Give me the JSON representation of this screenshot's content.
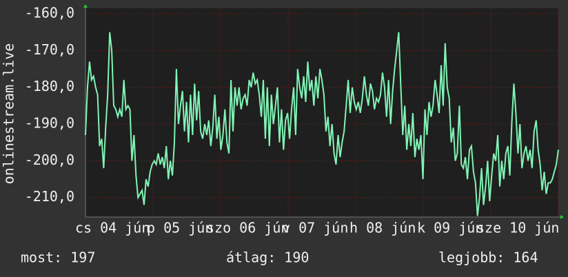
{
  "chart_data": {
    "type": "line",
    "y_label": "onlinestream.live",
    "color": "#80f5b5",
    "ylim": [
      -215.3,
      -158.5
    ],
    "yticks": [
      {
        "value": -160,
        "label": "-160,0"
      },
      {
        "value": -170,
        "label": "-170,0"
      },
      {
        "value": -180,
        "label": "-180,0"
      },
      {
        "value": -190,
        "label": "-190,0"
      },
      {
        "value": -200,
        "label": "-200,0"
      },
      {
        "value": -210,
        "label": "-210,0"
      }
    ],
    "x_labels": [
      "cs 04 jún",
      "p 05 jún",
      "szo 06 jún",
      "v 07 jún",
      "h 08 jún",
      "k 09 jún",
      "sze 10 jún"
    ],
    "grid": true,
    "values": [
      -193,
      -180,
      -173,
      -178,
      -177,
      -180,
      -182,
      -196,
      -194,
      -202,
      -191,
      -182,
      -165,
      -170,
      -185,
      -186,
      -188,
      -186,
      -188,
      -178,
      -186,
      -185,
      -186,
      -200,
      -193,
      -204,
      -210,
      -209,
      -208,
      -212,
      -205,
      -207,
      -203,
      -201,
      -200,
      -201,
      -198,
      -201,
      -199,
      -202,
      -196,
      -205,
      -200,
      -204,
      -195,
      -175,
      -190,
      -185,
      -181,
      -192,
      -184,
      -195,
      -182,
      -193,
      -179,
      -189,
      -181,
      -192,
      -194,
      -190,
      -193,
      -189,
      -196,
      -191,
      -182,
      -194,
      -188,
      -197,
      -193,
      -186,
      -195,
      -198,
      -178,
      -192,
      -180,
      -185,
      -180,
      -186,
      -183,
      -182,
      -185,
      -178,
      -180,
      -176,
      -179,
      -178,
      -182,
      -188,
      -178,
      -194,
      -180,
      -196,
      -182,
      -190,
      -185,
      -180,
      -195,
      -186,
      -197,
      -189,
      -187,
      -194,
      -186,
      -180,
      -193,
      -175,
      -180,
      -183,
      -177,
      -184,
      -173,
      -181,
      -178,
      -185,
      -177,
      -183,
      -175,
      -178,
      -182,
      -192,
      -188,
      -196,
      -190,
      -198,
      -201,
      -193,
      -199,
      -195,
      -192,
      -185,
      -178,
      -187,
      -180,
      -184,
      -186,
      -184,
      -187,
      -183,
      -177,
      -182,
      -185,
      -179,
      -181,
      -186,
      -183,
      -184,
      -182,
      -176,
      -180,
      -188,
      -178,
      -190,
      -181,
      -175,
      -170,
      -165,
      -179,
      -193,
      -185,
      -197,
      -190,
      -196,
      -187,
      -199,
      -194,
      -197,
      -193,
      -205,
      -186,
      -193,
      -184,
      -188,
      -185,
      -178,
      -182,
      -187,
      -174,
      -185,
      -168,
      -180,
      -183,
      -195,
      -191,
      -200,
      -198,
      -185,
      -201,
      -202,
      -199,
      -205,
      -197,
      -196,
      -203,
      -206,
      -215,
      -210,
      -202,
      -212,
      -207,
      -200,
      -211,
      -204,
      -198,
      -200,
      -193,
      -207,
      -200,
      -205,
      -198,
      -196,
      -204,
      -189,
      -179,
      -187,
      -198,
      -190,
      -202,
      -198,
      -196,
      -200,
      -197,
      -202,
      -192,
      -189,
      -197,
      -201,
      -208,
      -203,
      -209,
      -206,
      -206,
      -205,
      -203,
      -201,
      -197
    ],
    "footer": [
      "most: 197",
      "átlag: 190",
      "legjobb: 164"
    ]
  }
}
